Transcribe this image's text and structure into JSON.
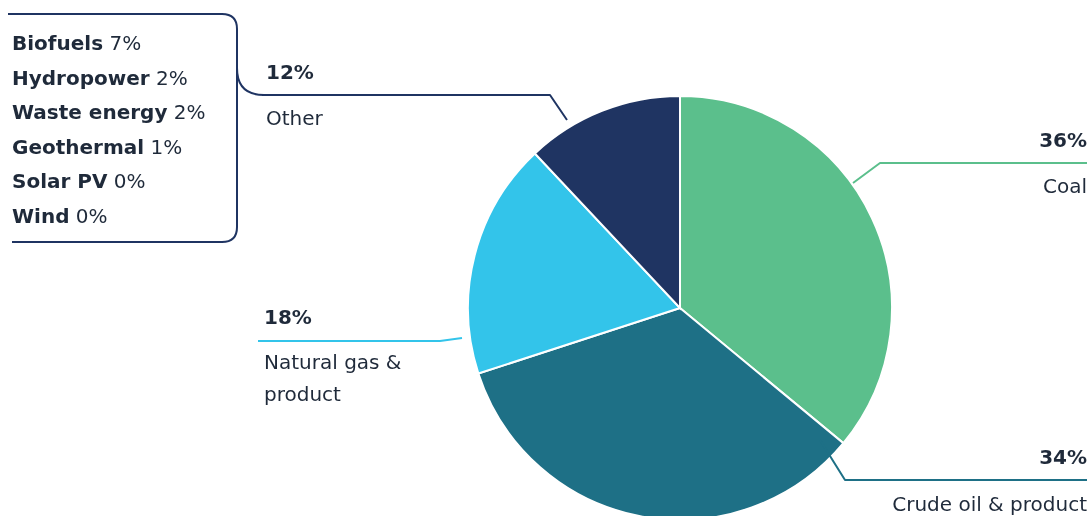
{
  "chart_data": {
    "type": "pie",
    "categories": [
      "Coal",
      "Crude oil & product",
      "Natural gas & product",
      "Other"
    ],
    "values": [
      36,
      34,
      18,
      12
    ],
    "colors": [
      "#5bbf8c",
      "#1e7086",
      "#33c4ea",
      "#1f3462"
    ],
    "value_labels": [
      "36%",
      "34%",
      "18%",
      "12%"
    ],
    "annotations": [
      "Biofuels 7%",
      "Hydropower 2%",
      "Waste energy 2%",
      "Geothermal 1%",
      "Solar PV 0%",
      "Wind 0%"
    ]
  }
}
